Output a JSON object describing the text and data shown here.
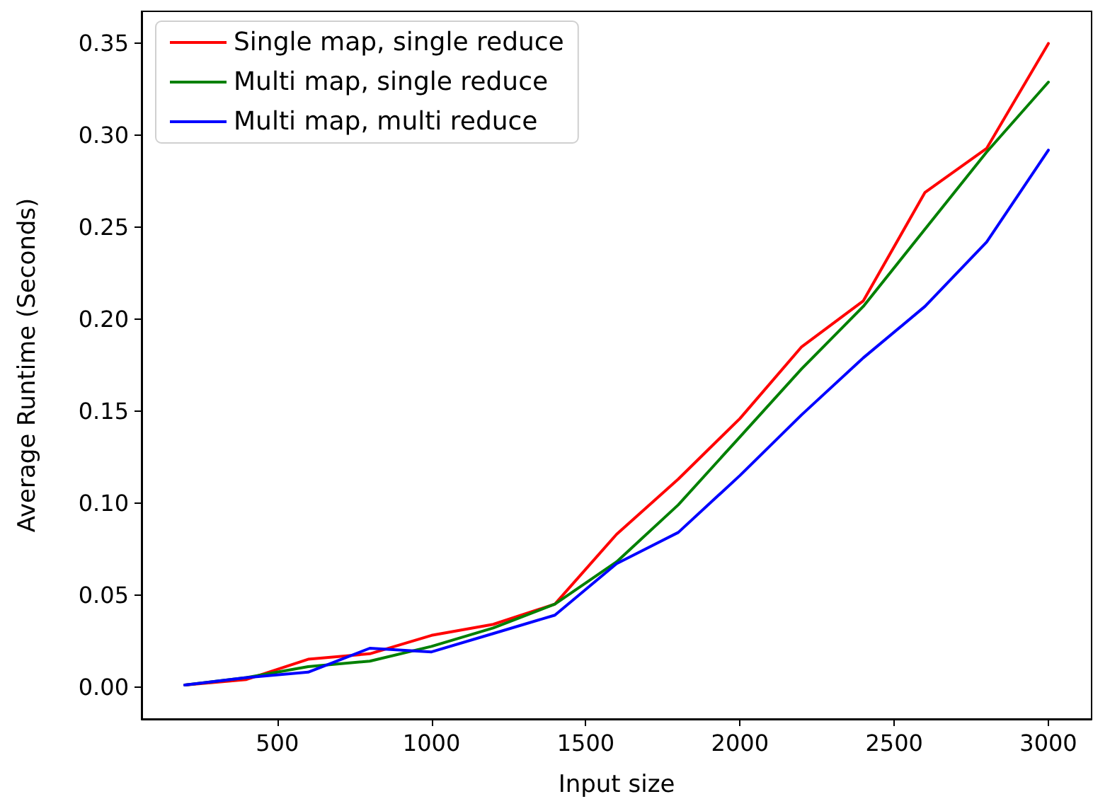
{
  "chart_data": {
    "type": "line",
    "xlabel": "Input size",
    "ylabel": "Average Runtime (Seconds)",
    "x": [
      200,
      400,
      600,
      800,
      1000,
      1200,
      1400,
      1600,
      1800,
      2000,
      2200,
      2400,
      2600,
      2800,
      3000
    ],
    "series": [
      {
        "name": "Single map, single reduce",
        "color": "#ff0000",
        "values": [
          0.001,
          0.004,
          0.015,
          0.018,
          0.028,
          0.034,
          0.045,
          0.083,
          0.113,
          0.146,
          0.185,
          0.21,
          0.269,
          0.293,
          0.35
        ]
      },
      {
        "name": "Multi map, single reduce",
        "color": "#008000",
        "values": [
          0.001,
          0.005,
          0.011,
          0.014,
          0.022,
          0.032,
          0.045,
          0.068,
          0.099,
          0.136,
          0.173,
          0.207,
          0.249,
          0.291,
          0.329
        ]
      },
      {
        "name": "Multi map, multi reduce",
        "color": "#0000ff",
        "values": [
          0.001,
          0.005,
          0.008,
          0.021,
          0.019,
          0.029,
          0.039,
          0.067,
          0.084,
          0.115,
          0.148,
          0.179,
          0.207,
          0.242,
          0.292
        ]
      }
    ],
    "xlim": [
      60,
      3140
    ],
    "ylim": [
      -0.0175,
      0.3675
    ],
    "xticks": [
      500,
      1000,
      1500,
      2000,
      2500,
      3000
    ],
    "yticks": [
      {
        "value": 0,
        "label": "0.00"
      },
      {
        "value": 0.05,
        "label": "0.05"
      },
      {
        "value": 0.1,
        "label": "0.10"
      },
      {
        "value": 0.15,
        "label": "0.15"
      },
      {
        "value": 0.2,
        "label": "0.20"
      },
      {
        "value": 0.25,
        "label": "0.25"
      },
      {
        "value": 0.3,
        "label": "0.30"
      },
      {
        "value": 0.35,
        "label": "0.35"
      }
    ],
    "legend": "top left",
    "grid": false,
    "marker": "none",
    "line_style": "solid"
  }
}
